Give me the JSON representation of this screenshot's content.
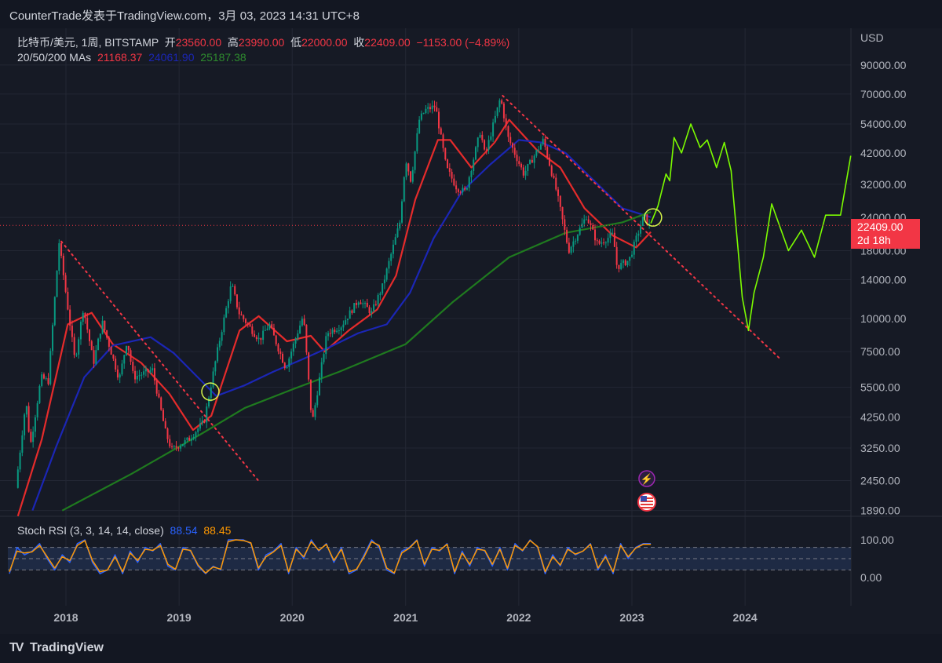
{
  "header": {
    "title": "CounterTrade发表于TradingView.com，3月 03, 2023 14:31 UTC+8"
  },
  "legend": {
    "symbol": "比特币/美元, 1周, BITSTAMP",
    "open_label": "开",
    "open": "23560.00",
    "high_label": "高",
    "high": "23990.00",
    "low_label": "低",
    "low": "22000.00",
    "close_label": "收",
    "close": "22409.00",
    "change": "−1153.00 (−4.89%)",
    "ma_label": "20/50/200 MAs",
    "ma20": "21168.37",
    "ma50": "24061.90",
    "ma200": "25187.38"
  },
  "price_tag": {
    "price": "22409.00",
    "countdown": "2d 18h"
  },
  "stoch": {
    "label": "Stoch RSI (3, 3, 14, 14, close)",
    "k": "88.54",
    "d": "88.45"
  },
  "footer": {
    "brand": "TradingView"
  },
  "colors": {
    "up": "#089981",
    "down": "#f23645",
    "ma20": "#e52b2b",
    "ma50": "#1b26b5",
    "ma200": "#1f7a1f",
    "projection": "#7cfc00",
    "k": "#2962ff",
    "d": "#ff9800"
  },
  "icons": [
    "lightning-icon",
    "us-flag-icon"
  ],
  "chart_data": [
    {
      "type": "candlestick",
      "symbol": "BTC/USD",
      "interval": "1W",
      "y_scale": "log",
      "currency": "USD",
      "y_ticks": [
        1890,
        2450,
        3250,
        4250,
        5500,
        7500,
        10000,
        14000,
        18000,
        24000,
        32000,
        42000,
        54000,
        70000,
        90000
      ],
      "x_ticks": [
        "2018",
        "2019",
        "2020",
        "2021",
        "2022",
        "2023",
        "2024"
      ],
      "last_price": 22409,
      "price_anchors": [
        {
          "date": "2017-07-30",
          "price": 2300
        },
        {
          "date": "2017-09-01",
          "price": 4900
        },
        {
          "date": "2017-09-15",
          "price": 3300
        },
        {
          "date": "2017-10-20",
          "price": 6000
        },
        {
          "date": "2017-11-12",
          "price": 5800
        },
        {
          "date": "2017-12-17",
          "price": 19300
        },
        {
          "date": "2018-02-06",
          "price": 6900
        },
        {
          "date": "2018-03-05",
          "price": 11000
        },
        {
          "date": "2018-04-07",
          "price": 6800
        },
        {
          "date": "2018-05-05",
          "price": 9700
        },
        {
          "date": "2018-06-29",
          "price": 5900
        },
        {
          "date": "2018-07-24",
          "price": 8300
        },
        {
          "date": "2018-08-14",
          "price": 6000
        },
        {
          "date": "2018-10-14",
          "price": 6400
        },
        {
          "date": "2018-11-26",
          "price": 3700
        },
        {
          "date": "2018-12-15",
          "price": 3200
        },
        {
          "date": "2019-02-08",
          "price": 3500
        },
        {
          "date": "2019-03-30",
          "price": 4100
        },
        {
          "date": "2019-05-14",
          "price": 7800
        },
        {
          "date": "2019-06-26",
          "price": 13500
        },
        {
          "date": "2019-07-20",
          "price": 10500
        },
        {
          "date": "2019-09-24",
          "price": 8300
        },
        {
          "date": "2019-10-26",
          "price": 9500
        },
        {
          "date": "2019-12-18",
          "price": 6500
        },
        {
          "date": "2020-02-13",
          "price": 10300
        },
        {
          "date": "2020-03-12",
          "price": 4000
        },
        {
          "date": "2020-04-29",
          "price": 8800
        },
        {
          "date": "2020-06-15",
          "price": 9400
        },
        {
          "date": "2020-08-10",
          "price": 11800
        },
        {
          "date": "2020-09-20",
          "price": 10500
        },
        {
          "date": "2020-10-25",
          "price": 13200
        },
        {
          "date": "2020-12-20",
          "price": 23000
        },
        {
          "date": "2021-01-08",
          "price": 40000
        },
        {
          "date": "2021-01-25",
          "price": 33000
        },
        {
          "date": "2021-02-21",
          "price": 56000
        },
        {
          "date": "2021-03-13",
          "price": 61000
        },
        {
          "date": "2021-04-14",
          "price": 63000
        },
        {
          "date": "2021-05-19",
          "price": 37000
        },
        {
          "date": "2021-06-22",
          "price": 31000
        },
        {
          "date": "2021-07-20",
          "price": 30000
        },
        {
          "date": "2021-09-06",
          "price": 51000
        },
        {
          "date": "2021-09-21",
          "price": 41000
        },
        {
          "date": "2021-11-10",
          "price": 68000
        },
        {
          "date": "2021-12-04",
          "price": 48000
        },
        {
          "date": "2022-01-24",
          "price": 35000
        },
        {
          "date": "2022-03-28",
          "price": 47000
        },
        {
          "date": "2022-05-10",
          "price": 30000
        },
        {
          "date": "2022-06-18",
          "price": 18000
        },
        {
          "date": "2022-08-14",
          "price": 24300
        },
        {
          "date": "2022-09-20",
          "price": 19000
        },
        {
          "date": "2022-11-08",
          "price": 20700
        },
        {
          "date": "2022-11-21",
          "price": 15600
        },
        {
          "date": "2022-12-30",
          "price": 16600
        },
        {
          "date": "2023-02-16",
          "price": 24500
        },
        {
          "date": "2023-03-03",
          "price": 22409
        }
      ],
      "moving_averages": [
        {
          "name": "MA20",
          "value": 21168.37,
          "points": [
            {
              "date": "2017-07-30",
              "price": 1800
            },
            {
              "date": "2017-10-15",
              "price": 3500
            },
            {
              "date": "2018-01-07",
              "price": 9500
            },
            {
              "date": "2018-03-25",
              "price": 10500
            },
            {
              "date": "2018-06-01",
              "price": 8000
            },
            {
              "date": "2018-09-01",
              "price": 6800
            },
            {
              "date": "2018-12-01",
              "price": 5200
            },
            {
              "date": "2019-02-15",
              "price": 3800
            },
            {
              "date": "2019-04-15",
              "price": 4300
            },
            {
              "date": "2019-07-15",
              "price": 9000
            },
            {
              "date": "2019-09-15",
              "price": 10200
            },
            {
              "date": "2019-12-15",
              "price": 8200
            },
            {
              "date": "2020-03-01",
              "price": 8600
            },
            {
              "date": "2020-04-15",
              "price": 7500
            },
            {
              "date": "2020-07-01",
              "price": 9000
            },
            {
              "date": "2020-10-01",
              "price": 10800
            },
            {
              "date": "2020-12-01",
              "price": 14500
            },
            {
              "date": "2021-02-01",
              "price": 28000
            },
            {
              "date": "2021-04-15",
              "price": 47000
            },
            {
              "date": "2021-05-25",
              "price": 47000
            },
            {
              "date": "2021-08-01",
              "price": 37000
            },
            {
              "date": "2021-10-15",
              "price": 46000
            },
            {
              "date": "2021-12-01",
              "price": 56000
            },
            {
              "date": "2022-03-01",
              "price": 43000
            },
            {
              "date": "2022-05-15",
              "price": 37000
            },
            {
              "date": "2022-08-01",
              "price": 26000
            },
            {
              "date": "2022-11-01",
              "price": 20500
            },
            {
              "date": "2023-01-15",
              "price": 18500
            },
            {
              "date": "2023-03-03",
              "price": 21168
            }
          ]
        },
        {
          "name": "MA50",
          "value": 24061.9,
          "points": [
            {
              "date": "2017-09-15",
              "price": 1890
            },
            {
              "date": "2017-12-01",
              "price": 3300
            },
            {
              "date": "2018-03-01",
              "price": 6000
            },
            {
              "date": "2018-06-01",
              "price": 7900
            },
            {
              "date": "2018-10-01",
              "price": 8500
            },
            {
              "date": "2018-12-15",
              "price": 7400
            },
            {
              "date": "2019-03-15",
              "price": 5800
            },
            {
              "date": "2019-05-01",
              "price": 5100
            },
            {
              "date": "2019-08-01",
              "price": 5600
            },
            {
              "date": "2019-11-01",
              "price": 6300
            },
            {
              "date": "2020-02-01",
              "price": 7000
            },
            {
              "date": "2020-05-01",
              "price": 7800
            },
            {
              "date": "2020-08-01",
              "price": 8800
            },
            {
              "date": "2020-11-01",
              "price": 9500
            },
            {
              "date": "2021-01-15",
              "price": 12500
            },
            {
              "date": "2021-04-01",
              "price": 20000
            },
            {
              "date": "2021-07-01",
              "price": 30000
            },
            {
              "date": "2021-10-01",
              "price": 38000
            },
            {
              "date": "2022-01-01",
              "price": 47000
            },
            {
              "date": "2022-03-15",
              "price": 46000
            },
            {
              "date": "2022-06-01",
              "price": 42000
            },
            {
              "date": "2022-09-01",
              "price": 33000
            },
            {
              "date": "2022-12-01",
              "price": 26000
            },
            {
              "date": "2023-03-03",
              "price": 24062
            }
          ]
        },
        {
          "name": "MA200",
          "value": 25187.38,
          "points": [
            {
              "date": "2017-12-20",
              "price": 1890
            },
            {
              "date": "2018-08-01",
              "price": 2600
            },
            {
              "date": "2019-03-01",
              "price": 3600
            },
            {
              "date": "2019-08-01",
              "price": 4600
            },
            {
              "date": "2020-01-01",
              "price": 5400
            },
            {
              "date": "2020-06-01",
              "price": 6300
            },
            {
              "date": "2021-01-01",
              "price": 8000
            },
            {
              "date": "2021-06-01",
              "price": 11500
            },
            {
              "date": "2021-12-01",
              "price": 17000
            },
            {
              "date": "2022-06-01",
              "price": 21000
            },
            {
              "date": "2022-12-01",
              "price": 23000
            },
            {
              "date": "2023-03-03",
              "price": 25187
            }
          ]
        }
      ],
      "projection_path": [
        {
          "date": "2023-03-03",
          "price": 22800
        },
        {
          "date": "2023-03-26",
          "price": 26500
        },
        {
          "date": "2023-04-21",
          "price": 35000
        },
        {
          "date": "2023-05-03",
          "price": 33000
        },
        {
          "date": "2023-05-17",
          "price": 48000
        },
        {
          "date": "2023-06-10",
          "price": 42000
        },
        {
          "date": "2023-07-10",
          "price": 54000
        },
        {
          "date": "2023-08-09",
          "price": 44000
        },
        {
          "date": "2023-09-01",
          "price": 47000
        },
        {
          "date": "2023-10-01",
          "price": 37000
        },
        {
          "date": "2023-10-26",
          "price": 46000
        },
        {
          "date": "2023-11-17",
          "price": 36000
        },
        {
          "date": "2023-12-08",
          "price": 19000
        },
        {
          "date": "2023-12-23",
          "price": 12000
        },
        {
          "date": "2024-01-12",
          "price": 9000
        },
        {
          "date": "2024-01-30",
          "price": 12500
        },
        {
          "date": "2024-02-29",
          "price": 17000
        },
        {
          "date": "2024-03-27",
          "price": 27000
        },
        {
          "date": "2024-05-20",
          "price": 18000
        },
        {
          "date": "2024-07-01",
          "price": 21500
        },
        {
          "date": "2024-08-12",
          "price": 17000
        },
        {
          "date": "2024-09-17",
          "price": 24500
        },
        {
          "date": "2024-11-04",
          "price": 24500
        },
        {
          "date": "2024-12-07",
          "price": 41000
        }
      ],
      "trendlines": [
        {
          "from": {
            "date": "2017-12-17",
            "price": 19500
          },
          "to": {
            "date": "2019-09-20",
            "price": 2400
          }
        },
        {
          "from": {
            "date": "2021-11-10",
            "price": 69000
          },
          "to": {
            "date": "2024-04-20",
            "price": 7100
          }
        }
      ],
      "highlight_circles": [
        {
          "date": "2019-04-12",
          "price": 5300
        },
        {
          "date": "2023-03-10",
          "price": 24000
        }
      ]
    },
    {
      "type": "line",
      "name": "Stoch RSI (3, 3, 14, 14, close)",
      "y_ticks": [
        0,
        100
      ],
      "bands": [
        20,
        80
      ],
      "series": [
        {
          "name": "K",
          "value": 88.54,
          "values": [
            10,
            80,
            60,
            70,
            90,
            50,
            20,
            60,
            40,
            90,
            100,
            40,
            10,
            20,
            60,
            10,
            70,
            40,
            80,
            70,
            90,
            30,
            20,
            80,
            70,
            30,
            10,
            30,
            20,
            100,
            100,
            100,
            90,
            20,
            60,
            70,
            90,
            10,
            80,
            50,
            100,
            70,
            90,
            40,
            80,
            10,
            20,
            60,
            100,
            80,
            20,
            10,
            70,
            80,
            100,
            30,
            80,
            70,
            90,
            10,
            70,
            30,
            80,
            70,
            30,
            80,
            20,
            90,
            70,
            100,
            80,
            10,
            60,
            30,
            80,
            60,
            70,
            90,
            20,
            60,
            10,
            90,
            50,
            80,
            90,
            90
          ]
        },
        {
          "name": "D",
          "value": 88.45,
          "values": [
            15,
            70,
            65,
            68,
            85,
            55,
            25,
            55,
            45,
            85,
            98,
            45,
            15,
            20,
            55,
            15,
            65,
            45,
            75,
            72,
            85,
            35,
            22,
            75,
            72,
            33,
            12,
            28,
            22,
            95,
            100,
            98,
            92,
            25,
            55,
            68,
            85,
            15,
            75,
            55,
            95,
            72,
            88,
            45,
            75,
            15,
            22,
            55,
            95,
            85,
            25,
            12,
            65,
            78,
            98,
            35,
            75,
            72,
            88,
            15,
            65,
            35,
            75,
            72,
            35,
            75,
            25,
            85,
            72,
            98,
            82,
            15,
            55,
            33,
            75,
            62,
            70,
            88,
            25,
            55,
            15,
            85,
            55,
            78,
            88,
            88
          ]
        }
      ]
    }
  ]
}
